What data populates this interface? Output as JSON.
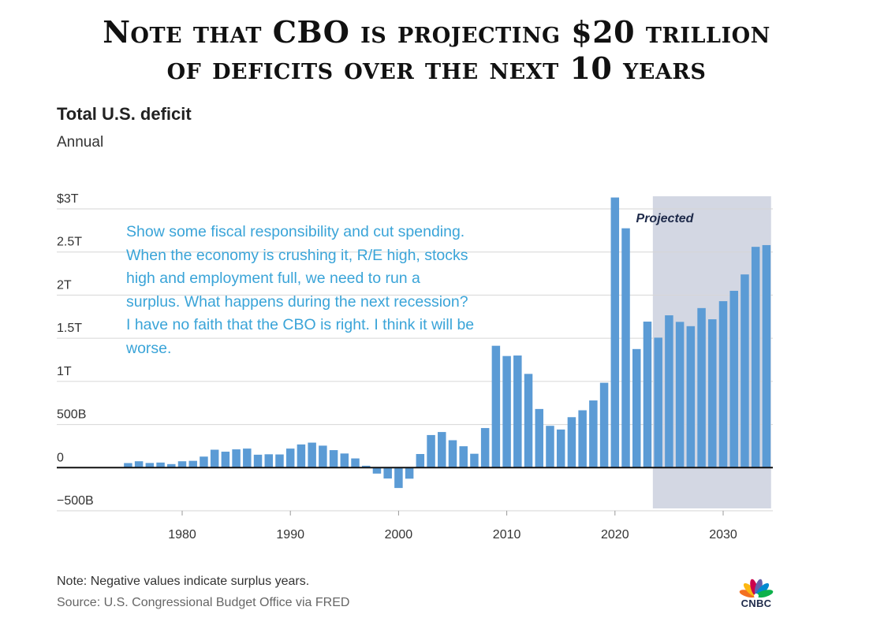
{
  "headline": {
    "line1": "Note that CBO is projecting $20 trillion",
    "line2": "of deficits over the next 10 years"
  },
  "overlay": {
    "lines": [
      "Show some fiscal responsibility and cut spending.",
      "When the economy is crushing it, R/E high, stocks",
      "high and employment full, we need to run a",
      "surplus. What happens during the next recession?",
      "I have no faith that the CBO is right. I think it will be",
      "worse."
    ],
    "color": "#3aa4d8"
  },
  "footer": {
    "note": "Note: Negative values indicate surplus years.",
    "source": "Source: U.S. Congressional Budget Office via FRED",
    "logo_text": "CNBC"
  },
  "chart_data": {
    "type": "bar",
    "title": "Total U.S. deficit",
    "subtitle": "Annual",
    "ylim": [
      -500,
      3000
    ],
    "y_ticks": [
      {
        "value": 3000,
        "label": "$3T"
      },
      {
        "value": 2500,
        "label": "2.5T"
      },
      {
        "value": 2000,
        "label": "2T"
      },
      {
        "value": 1500,
        "label": "1.5T"
      },
      {
        "value": 1000,
        "label": "1T"
      },
      {
        "value": 500,
        "label": "500B"
      },
      {
        "value": 0,
        "label": "0"
      },
      {
        "value": -500,
        "label": "−500B"
      }
    ],
    "x_ticks": [
      1980,
      1990,
      2000,
      2010,
      2020,
      2030
    ],
    "projected_label": "Projected",
    "projected_start": 2024,
    "bar_color": "#5b9bd5",
    "projected_band_color": "#d3d7e3",
    "grid": true,
    "unit": "billions of dollars",
    "x": [
      1975,
      1976,
      1977,
      1978,
      1979,
      1980,
      1981,
      1982,
      1983,
      1984,
      1985,
      1986,
      1987,
      1988,
      1989,
      1990,
      1991,
      1992,
      1993,
      1994,
      1995,
      1996,
      1997,
      1998,
      1999,
      2000,
      2001,
      2002,
      2003,
      2004,
      2005,
      2006,
      2007,
      2008,
      2009,
      2010,
      2011,
      2012,
      2013,
      2014,
      2015,
      2016,
      2017,
      2018,
      2019,
      2020,
      2021,
      2022,
      2023,
      2024,
      2025,
      2026,
      2027,
      2028,
      2029,
      2030,
      2031,
      2032,
      2033,
      2034
    ],
    "values": [
      53,
      74,
      54,
      59,
      41,
      74,
      79,
      128,
      208,
      185,
      212,
      221,
      150,
      155,
      153,
      221,
      269,
      290,
      255,
      203,
      164,
      107,
      22,
      -69,
      -126,
      -236,
      -128,
      158,
      378,
      413,
      318,
      248,
      161,
      459,
      1413,
      1294,
      1300,
      1087,
      680,
      485,
      442,
      585,
      665,
      779,
      984,
      3132,
      2775,
      1375,
      1693,
      1507,
      1766,
      1690,
      1640,
      1850,
      1720,
      1930,
      2050,
      2240,
      2560,
      2580
    ]
  }
}
